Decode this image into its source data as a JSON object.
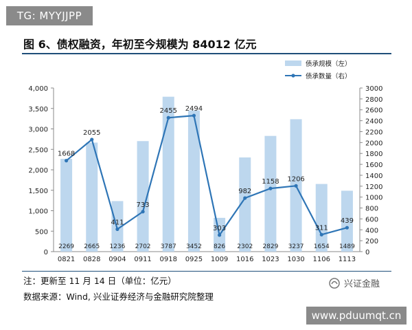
{
  "watermark_top": "TG: MYYJJPP",
  "watermark_bottom": "www.pduumqt.cn",
  "brand_label": "兴证金融",
  "note": "注：更新至 11 月 14 日（单位：亿元）",
  "source": "数据来源：Wind, 兴业证券经济与金融研究院整理",
  "colors": {
    "bar": "#bdd7ee",
    "line": "#2e75b6",
    "rule": "#1f4e79"
  },
  "chart_data": {
    "type": "bar+line",
    "title": "图 6、债权融资，年初至今规模为 84012 亿元",
    "categories": [
      "0821",
      "0828",
      "0904",
      "0911",
      "0918",
      "0925",
      "1009",
      "1016",
      "1023",
      "1030",
      "1106",
      "1113"
    ],
    "series": [
      {
        "name": "债承规模（左）",
        "type": "bar",
        "axis": "left",
        "values": [
          2269,
          2665,
          1236,
          2702,
          3787,
          3452,
          826,
          2302,
          2829,
          3237,
          1654,
          1489
        ]
      },
      {
        "name": "债承数量（右）",
        "type": "line",
        "axis": "right",
        "values": [
          1668,
          2055,
          411,
          733,
          2455,
          2494,
          303,
          982,
          1158,
          1206,
          311,
          439
        ]
      }
    ],
    "left_axis": {
      "min": 0,
      "max": 4000,
      "step": 500,
      "tick_labels": [
        "0",
        "500",
        "1,000",
        "1,500",
        "2,000",
        "2,500",
        "3,000",
        "3,500",
        "4,000"
      ]
    },
    "right_axis": {
      "min": 0,
      "max": 3000,
      "step": 200,
      "tick_labels": [
        "0",
        "200",
        "400",
        "600",
        "800",
        "1000",
        "1200",
        "1400",
        "1600",
        "1800",
        "2000",
        "2200",
        "2400",
        "2600",
        "2800",
        "3000"
      ]
    },
    "legend_position": "top-right",
    "grid": false
  }
}
